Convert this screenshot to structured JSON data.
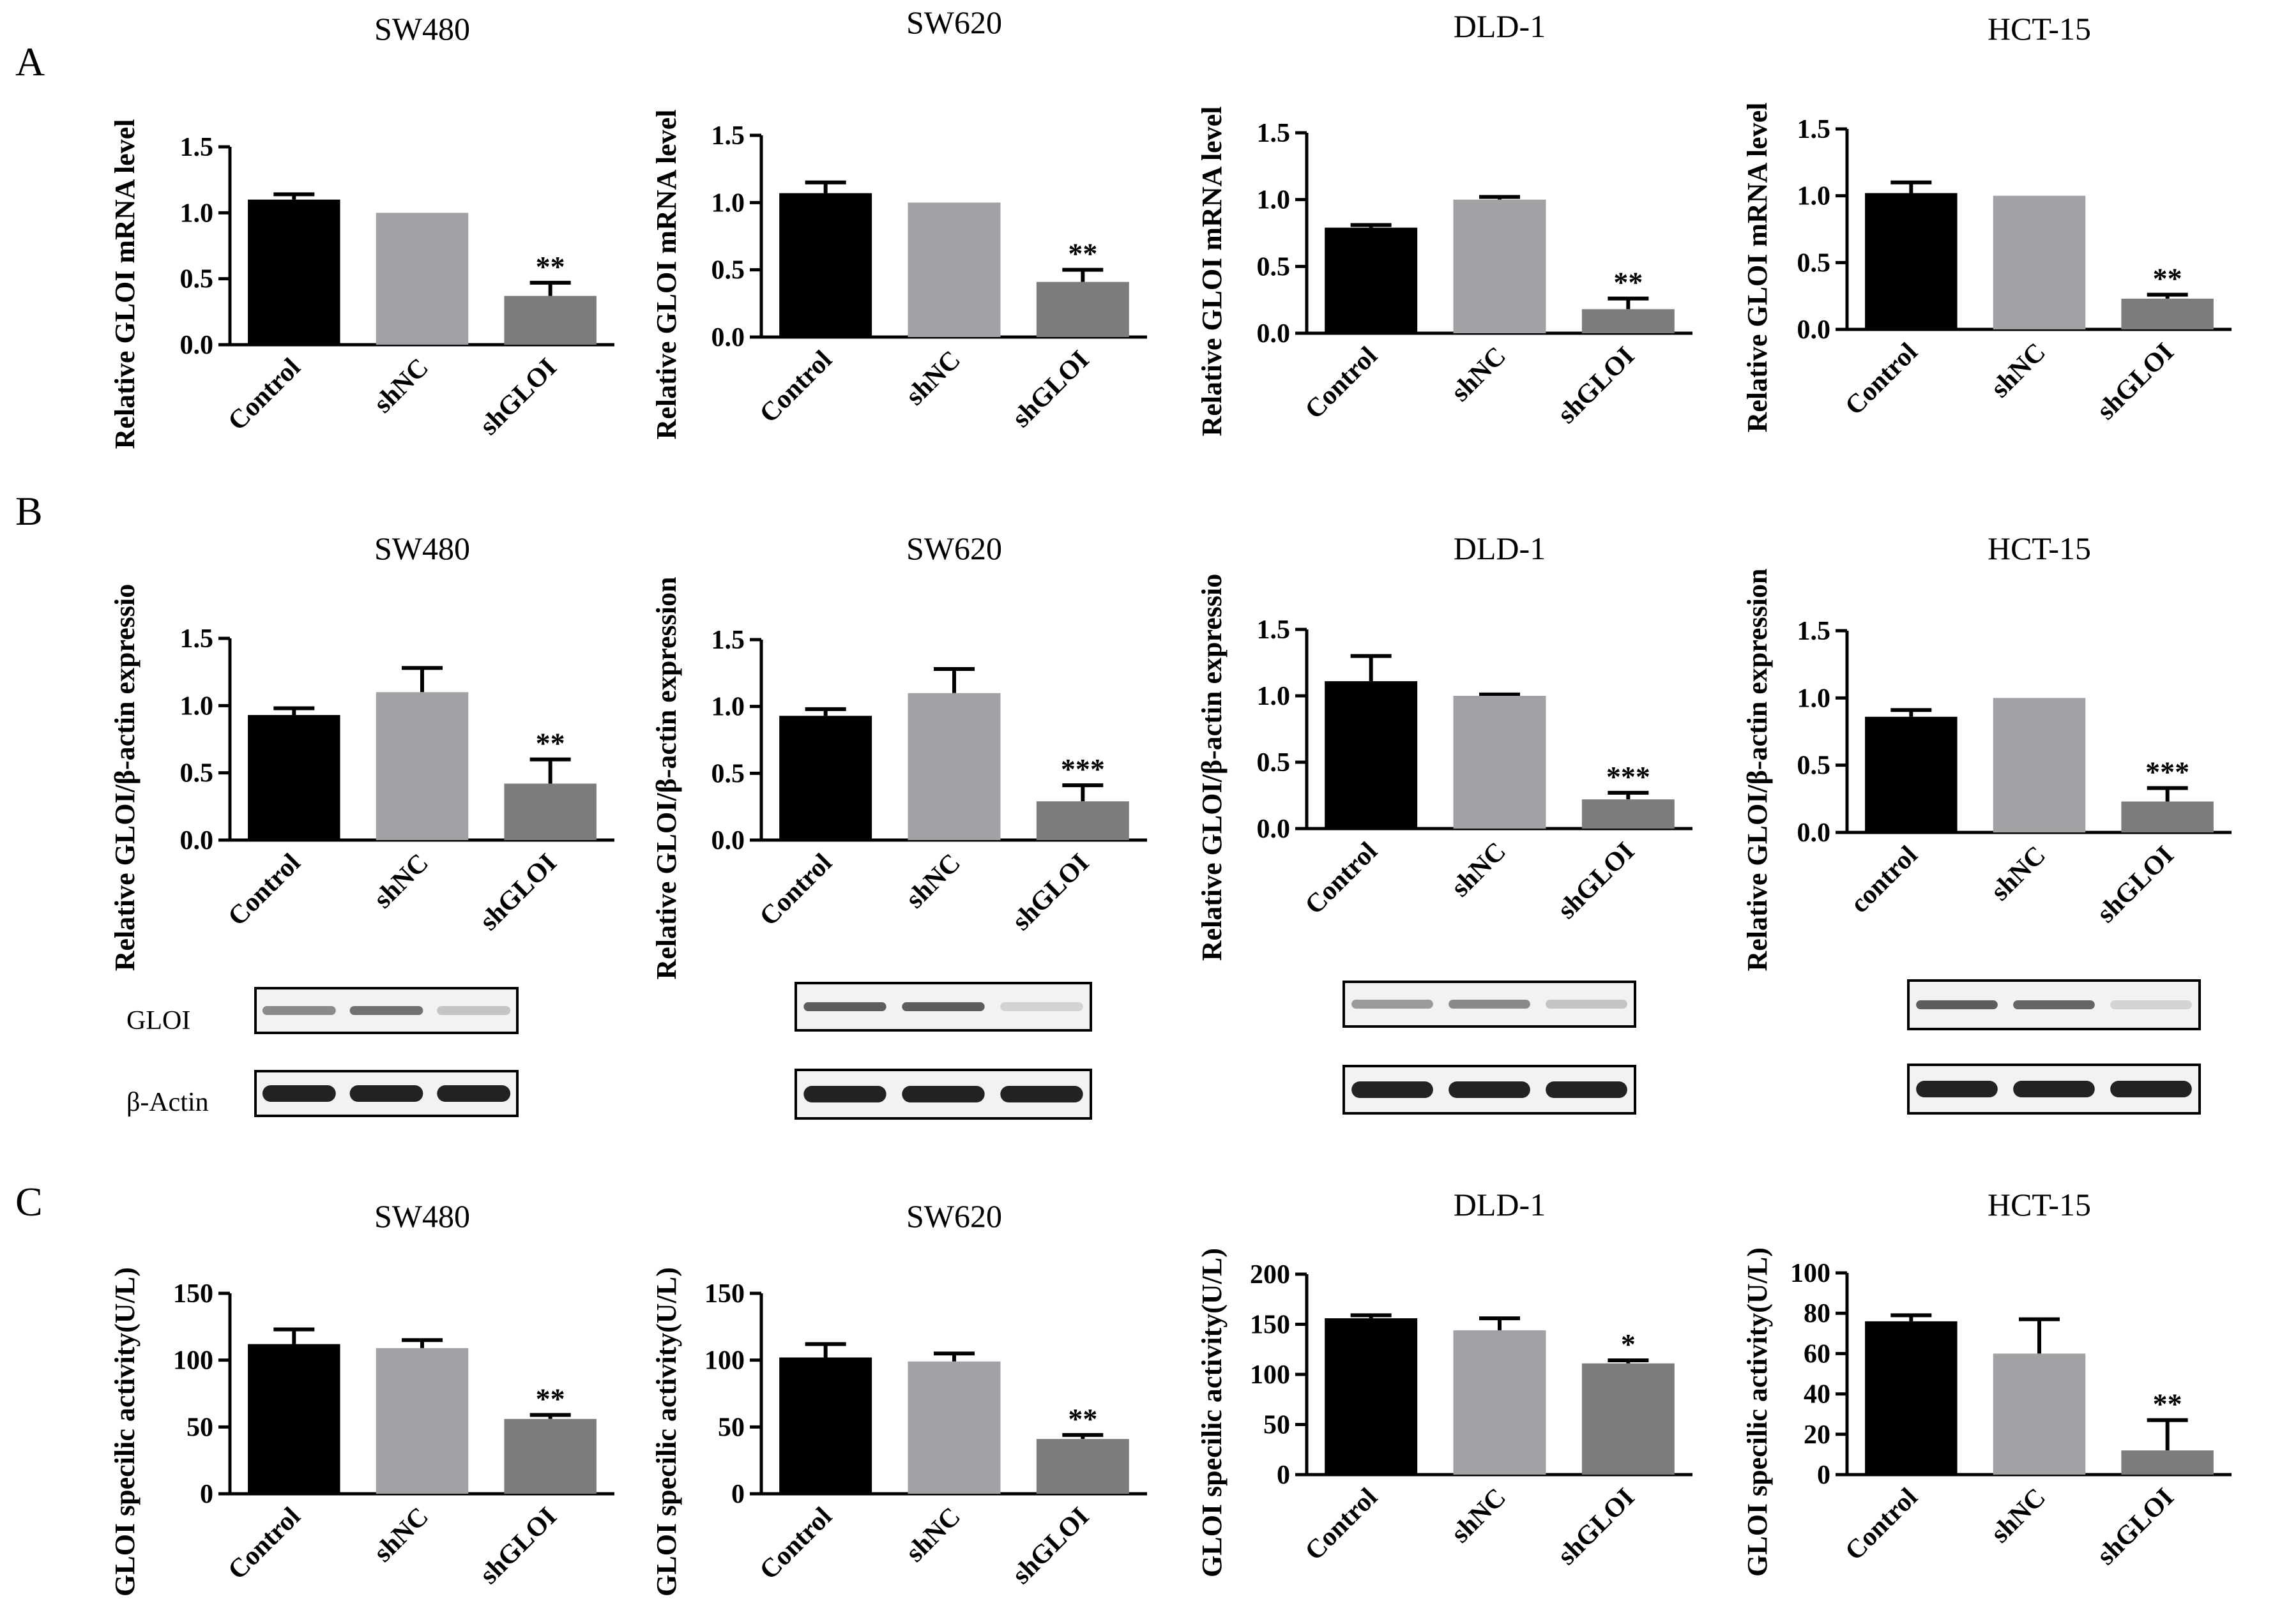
{
  "figure": {
    "panel_labels": [
      "A",
      "B",
      "C"
    ],
    "blot_row_labels": {
      "gloi": "GLOI",
      "actin": "β-Actin"
    }
  },
  "colors": {
    "control": "#000000",
    "shNC": "#a2a2a6",
    "shGLOI": "#7c7c7c",
    "blot_band": "#222222"
  },
  "chart_data": [
    {
      "id": "A1",
      "type": "bar",
      "title": "SW480",
      "ylabel": "Relative GLOI mRNA level",
      "xlabel": "",
      "categories": [
        "Control",
        "shNC",
        "shGLOI"
      ],
      "values": [
        1.1,
        1.0,
        0.37
      ],
      "errors": [
        0.04,
        0,
        0.1
      ],
      "significance": [
        "",
        "",
        "**"
      ],
      "ylim": [
        0,
        1.5
      ],
      "yticks": [
        "0.0",
        "0.5",
        "1.0",
        "1.5"
      ]
    },
    {
      "id": "A2",
      "type": "bar",
      "title": "SW620",
      "ylabel": "Relative GLOI mRNA level",
      "xlabel": "",
      "categories": [
        "Control",
        "shNC",
        "shGLOI"
      ],
      "values": [
        1.07,
        1.0,
        0.41
      ],
      "errors": [
        0.08,
        0,
        0.09
      ],
      "significance": [
        "",
        "",
        "**"
      ],
      "ylim": [
        0,
        1.5
      ],
      "yticks": [
        "0.0",
        "0.5",
        "1.0",
        "1.5"
      ]
    },
    {
      "id": "A3",
      "type": "bar",
      "title": "DLD-1",
      "ylabel": "Relative GLOI mRNA level",
      "xlabel": "",
      "categories": [
        "Control",
        "shNC",
        "shGLOI"
      ],
      "values": [
        0.79,
        1.0,
        0.18
      ],
      "errors": [
        0.02,
        0.02,
        0.08
      ],
      "significance": [
        "",
        "",
        "**"
      ],
      "ylim": [
        0,
        1.5
      ],
      "yticks": [
        "0.0",
        "0.5",
        "1.0",
        "1.5"
      ]
    },
    {
      "id": "A4",
      "type": "bar",
      "title": "HCT-15",
      "ylabel": "Relative GLOI mRNA level",
      "xlabel": "",
      "categories": [
        "Control",
        "shNC",
        "shGLOI"
      ],
      "values": [
        1.02,
        1.0,
        0.23
      ],
      "errors": [
        0.08,
        0,
        0.03
      ],
      "significance": [
        "",
        "",
        "**"
      ],
      "ylim": [
        0,
        1.5
      ],
      "yticks": [
        "0.0",
        "0.5",
        "1.0",
        "1.5"
      ]
    },
    {
      "id": "B1",
      "type": "bar",
      "title": "SW480",
      "ylabel": "Relative GLOI/β-actin expressio",
      "xlabel": "",
      "categories": [
        "Control",
        "shNC",
        "shGLOI"
      ],
      "values": [
        0.93,
        1.1,
        0.42
      ],
      "errors": [
        0.05,
        0.18,
        0.18
      ],
      "significance": [
        "",
        "",
        "**"
      ],
      "ylim": [
        0,
        1.5
      ],
      "yticks": [
        "0.0",
        "0.5",
        "1.0",
        "1.5"
      ]
    },
    {
      "id": "B2",
      "type": "bar",
      "title": "SW620",
      "ylabel": "Relative GLOI/β-actin expression",
      "xlabel": "",
      "categories": [
        "Control",
        "shNC",
        "shGLOI"
      ],
      "values": [
        0.93,
        1.1,
        0.29
      ],
      "errors": [
        0.05,
        0.18,
        0.12
      ],
      "significance": [
        "",
        "",
        "***"
      ],
      "ylim": [
        0,
        1.5
      ],
      "yticks": [
        "0.0",
        "0.5",
        "1.0",
        "1.5"
      ]
    },
    {
      "id": "B3",
      "type": "bar",
      "title": "DLD-1",
      "ylabel": "Relative GLOI/β-actin expressio",
      "xlabel": "",
      "categories": [
        "Control",
        "shNC",
        "shGLOI"
      ],
      "values": [
        1.11,
        1.0,
        0.22
      ],
      "errors": [
        0.19,
        0.01,
        0.05
      ],
      "significance": [
        "",
        "",
        "***"
      ],
      "ylim": [
        0,
        1.5
      ],
      "yticks": [
        "0.0",
        "0.5",
        "1.0",
        "1.5"
      ]
    },
    {
      "id": "B4",
      "type": "bar",
      "title": "HCT-15",
      "ylabel": "Relative GLOI/β-actin expression",
      "xlabel": "",
      "categories": [
        "control",
        "shNC",
        "shGLOI"
      ],
      "values": [
        0.86,
        1.0,
        0.23
      ],
      "errors": [
        0.05,
        0,
        0.1
      ],
      "significance": [
        "",
        "",
        "***"
      ],
      "ylim": [
        0,
        1.5
      ],
      "yticks": [
        "0.0",
        "0.5",
        "1.0",
        "1.5"
      ]
    },
    {
      "id": "C1",
      "type": "bar",
      "title": "SW480",
      "ylabel": "GLOI specilic activity(U/L)",
      "xlabel": "",
      "categories": [
        "Control",
        "shNC",
        "shGLOI"
      ],
      "values": [
        112,
        109,
        56
      ],
      "errors": [
        11,
        6,
        3
      ],
      "significance": [
        "",
        "",
        "**"
      ],
      "ylim": [
        0,
        150
      ],
      "yticks": [
        "0",
        "50",
        "100",
        "150"
      ]
    },
    {
      "id": "C2",
      "type": "bar",
      "title": "SW620",
      "ylabel": "GLOI specilic activity(U/L)",
      "xlabel": "",
      "categories": [
        "Control",
        "shNC",
        "shGLOI"
      ],
      "values": [
        102,
        99,
        41
      ],
      "errors": [
        10,
        6,
        3
      ],
      "significance": [
        "",
        "",
        "**"
      ],
      "ylim": [
        0,
        150
      ],
      "yticks": [
        "0",
        "50",
        "100",
        "150"
      ]
    },
    {
      "id": "C3",
      "type": "bar",
      "title": "DLD-1",
      "ylabel": "GLOI specilic activity(U/L)",
      "xlabel": "",
      "categories": [
        "Control",
        "shNC",
        "shGLOI"
      ],
      "values": [
        156,
        144,
        111
      ],
      "errors": [
        3,
        12,
        3
      ],
      "significance": [
        "",
        "",
        "*"
      ],
      "ylim": [
        0,
        200
      ],
      "yticks": [
        "0",
        "50",
        "100",
        "150",
        "200"
      ]
    },
    {
      "id": "C4",
      "type": "bar",
      "title": "HCT-15",
      "ylabel": "GLOI specilic activity(U/L)",
      "xlabel": "",
      "categories": [
        "Control",
        "shNC",
        "shGLOI"
      ],
      "values": [
        76,
        60,
        12
      ],
      "errors": [
        3,
        17,
        15
      ],
      "significance": [
        "",
        "",
        "**"
      ],
      "ylim": [
        0,
        100
      ],
      "yticks": [
        "0",
        "20",
        "40",
        "60",
        "80",
        "100"
      ]
    }
  ],
  "blots": [
    {
      "panel": "B1",
      "gloi_intensity": [
        0.5,
        0.62,
        0.22
      ],
      "actin_intensity": [
        1,
        1,
        1
      ]
    },
    {
      "panel": "B2",
      "gloi_intensity": [
        0.72,
        0.72,
        0.15
      ],
      "actin_intensity": [
        1,
        1,
        1
      ]
    },
    {
      "panel": "B3",
      "gloi_intensity": [
        0.42,
        0.5,
        0.22
      ],
      "actin_intensity": [
        1,
        1,
        1
      ]
    },
    {
      "panel": "B4",
      "gloi_intensity": [
        0.72,
        0.68,
        0.15
      ],
      "actin_intensity": [
        1,
        1,
        1
      ]
    }
  ]
}
